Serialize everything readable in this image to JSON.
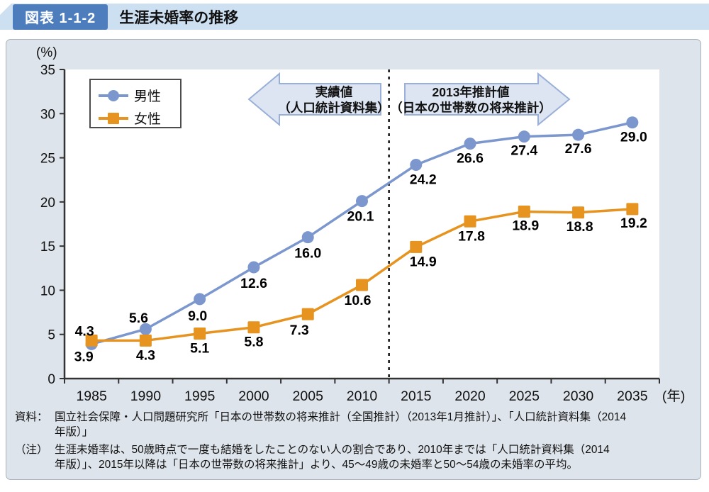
{
  "header": {
    "badge": "図表 1-1-2",
    "title": "生涯未婚率の推移"
  },
  "chart_data": {
    "type": "line",
    "title": "生涯未婚率の推移",
    "y_unit_label": "(%)",
    "x_unit_label": "(年)",
    "categories": [
      "1985",
      "1990",
      "1995",
      "2000",
      "2005",
      "2010",
      "2015",
      "2020",
      "2025",
      "2030",
      "2035"
    ],
    "ylim": [
      0,
      35
    ],
    "yticks": [
      0,
      5,
      10,
      15,
      20,
      25,
      30,
      35
    ],
    "grid": false,
    "legend_position": "top-left-inside",
    "divider": {
      "style": "dashed",
      "between": [
        "2010",
        "2015"
      ]
    },
    "annotations": [
      {
        "id": "actual",
        "direction": "left",
        "lines": [
          "実績値",
          "（人口統計資料集）"
        ]
      },
      {
        "id": "projection",
        "direction": "right",
        "lines": [
          "2013年推計値",
          "（日本の世帯数の将来推計）"
        ]
      }
    ],
    "series": [
      {
        "key": "male",
        "name": "男性",
        "marker": "circle",
        "color": "#7b97ce",
        "values": [
          3.9,
          5.6,
          9.0,
          12.6,
          16.0,
          20.1,
          24.2,
          26.6,
          27.4,
          27.6,
          29.0
        ]
      },
      {
        "key": "female",
        "name": "女性",
        "marker": "square",
        "color": "#e6931f",
        "values": [
          4.3,
          4.3,
          5.1,
          5.8,
          7.3,
          10.6,
          14.9,
          17.8,
          18.9,
          18.8,
          19.2
        ]
      }
    ]
  },
  "notes": {
    "source": {
      "label": "資料：",
      "line1": "国立社会保障・人口問題研究所「日本の世帯数の将来推計（全国推計）（2013年1月推計）」、「人口統計資料集（2014",
      "line2": "年版）」"
    },
    "note": {
      "label": "（注）",
      "line1": "生涯未婚率は、50歳時点で一度も結婚をしたことのない人の割合であり、2010年までは「人口統計資料集（2014",
      "line2": "年版）」、2015年以降は「日本の世帯数の将来推計」より、45〜49歳の未婚率と50〜54歳の未婚率の平均。"
    }
  },
  "colors": {
    "male": "#7b97ce",
    "female": "#e6931f",
    "badge": "#4e7dbd",
    "panel_bg": "#dee4eb",
    "header_strip": "#cde0f2",
    "arrow_fill": "#dde5f3",
    "arrow_border": "#9ab0d8",
    "axis": "#333333",
    "plot_bg": "#ffffff"
  }
}
